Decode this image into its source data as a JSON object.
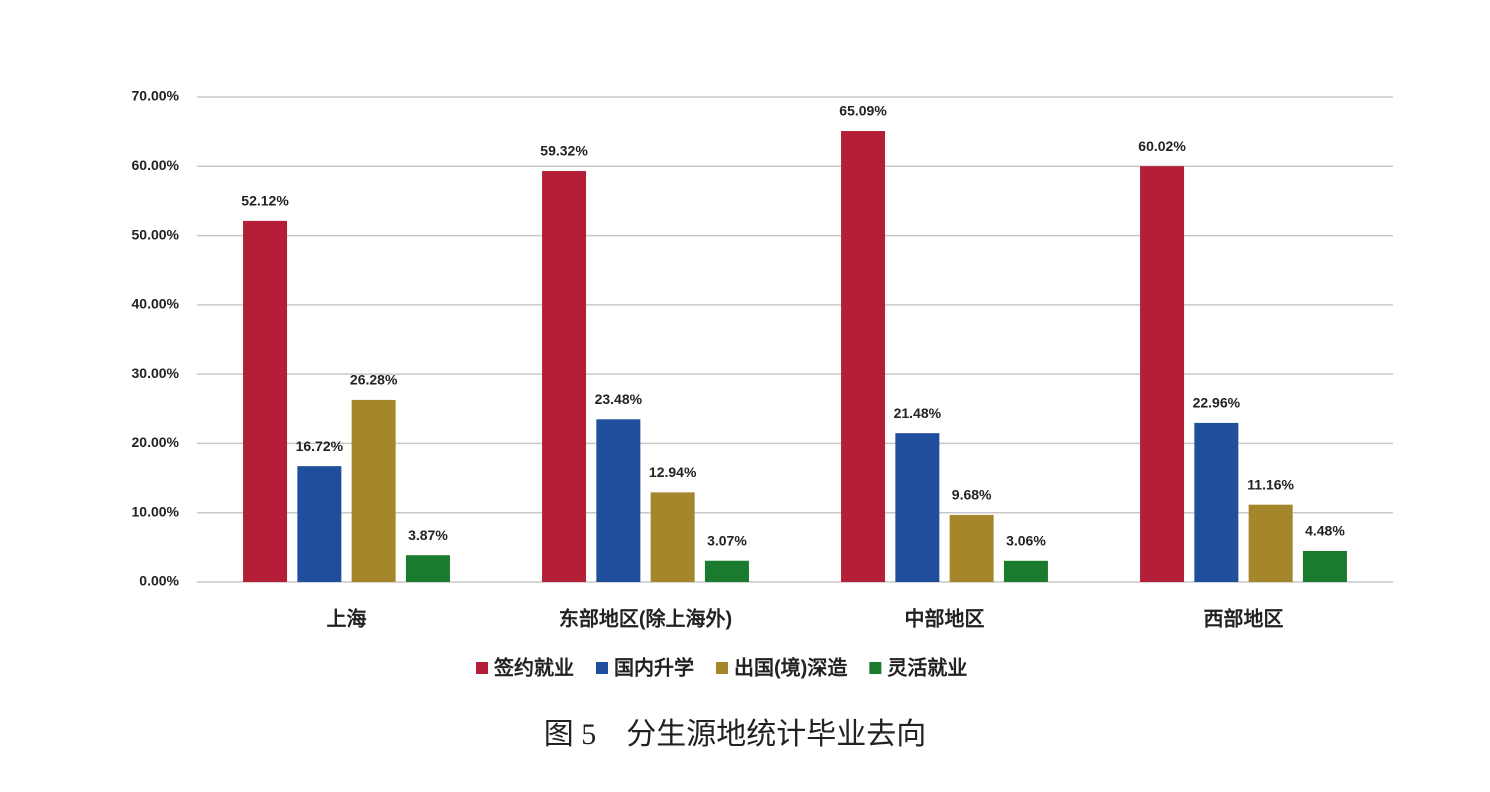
{
  "chart_data": {
    "type": "bar",
    "caption": "图 5　分生源地统计毕业去向",
    "categories": [
      "上海",
      "东部地区(除上海外)",
      "中部地区",
      "西部地区"
    ],
    "series": [
      {
        "name": "签约就业",
        "color": "#b41f37",
        "values": [
          52.12,
          59.32,
          65.09,
          60.02
        ],
        "value_labels": [
          "52.12%",
          "59.32%",
          "65.09%",
          "60.02%"
        ]
      },
      {
        "name": "国内升学",
        "color": "#1f4e9c",
        "values": [
          16.72,
          23.48,
          21.48,
          22.96
        ],
        "value_labels": [
          "16.72%",
          "23.48%",
          "21.48%",
          "22.96%"
        ]
      },
      {
        "name": "出国(境)深造",
        "color": "#a6862a",
        "values": [
          26.28,
          12.94,
          9.68,
          11.16
        ],
        "value_labels": [
          "26.28%",
          "12.94%",
          "9.68%",
          "11.16%"
        ]
      },
      {
        "name": "灵活就业",
        "color": "#1a7a2e",
        "values": [
          3.87,
          3.07,
          3.06,
          4.48
        ],
        "value_labels": [
          "3.87%",
          "3.07%",
          "3.06%",
          "4.48%"
        ]
      }
    ],
    "ylim": [
      0,
      70
    ],
    "yticks": [
      {
        "value": 0,
        "label": "0.00%"
      },
      {
        "value": 10,
        "label": "10.00%"
      },
      {
        "value": 20,
        "label": "20.00%"
      },
      {
        "value": 30,
        "label": "30.00%"
      },
      {
        "value": 40,
        "label": "40.00%"
      },
      {
        "value": 50,
        "label": "50.00%"
      },
      {
        "value": 60,
        "label": "60.00%"
      },
      {
        "value": 70,
        "label": "70.00%"
      }
    ],
    "grid": true,
    "legend": "bottom"
  }
}
